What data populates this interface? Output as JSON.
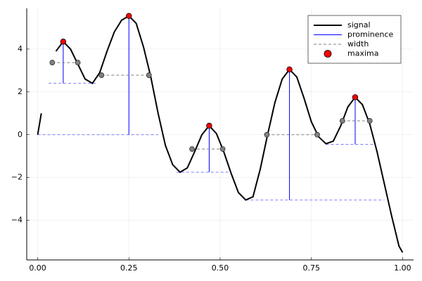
{
  "chart_data": {
    "type": "line",
    "xlim": [
      -0.03,
      1.03
    ],
    "ylim": [
      -5.85,
      5.9
    ],
    "xticks": [
      {
        "value": 0,
        "label": "0.00"
      },
      {
        "value": 0.25,
        "label": "0.25"
      },
      {
        "value": 0.5,
        "label": "0.50"
      },
      {
        "value": 0.75,
        "label": "0.75"
      },
      {
        "value": 1,
        "label": "1.00"
      }
    ],
    "yticks": [
      {
        "value": -4,
        "label": "−4"
      },
      {
        "value": -2,
        "label": "−2"
      },
      0,
      2,
      4
    ],
    "grid": true,
    "legend": "top-right",
    "series": [
      {
        "name": "signal",
        "color": "#000000",
        "mark": "line",
        "x": [
          0,
          0.01,
          0.03,
          0.05,
          0.07,
          0.09,
          0.11,
          0.13,
          0.15,
          0.17,
          0.19,
          0.21,
          0.23,
          0.25,
          0.27,
          0.29,
          0.31,
          0.33,
          0.35,
          0.37,
          0.39,
          0.41,
          0.43,
          0.45,
          0.47,
          0.49,
          0.51,
          0.53,
          0.55,
          0.57,
          0.59,
          0.61,
          0.63,
          0.65,
          0.67,
          0.69,
          0.71,
          0.73,
          0.75,
          0.77,
          0.79,
          0.81,
          0.83,
          0.85,
          0.87,
          0.89,
          0.91,
          0.93,
          0.95,
          0.97,
          0.99,
          1.0
        ],
        "values": [
          0,
          1.0,
          null,
          3.9,
          4.35,
          4.0,
          3.3,
          2.6,
          2.4,
          2.9,
          3.9,
          4.8,
          5.35,
          5.55,
          5.2,
          4.1,
          2.7,
          1.0,
          -0.5,
          -1.4,
          -1.75,
          -1.55,
          -0.8,
          0.0,
          0.42,
          0.05,
          -0.8,
          -1.8,
          -2.7,
          -3.05,
          -2.9,
          -1.6,
          0.0,
          1.5,
          2.6,
          3.05,
          2.7,
          1.7,
          0.6,
          -0.1,
          -0.42,
          -0.3,
          0.4,
          1.3,
          1.75,
          1.4,
          0.5,
          -0.8,
          -2.3,
          -3.8,
          -5.2,
          -5.5
        ]
      },
      {
        "name": "prominence",
        "color": "#0000ff",
        "mark": "vline",
        "x": [
          0.07,
          0.25,
          0.47,
          0.69,
          0.87
        ],
        "values": [
          4.35,
          5.55,
          0.42,
          3.05,
          1.75
        ],
        "bases": [
          2.4,
          0,
          -1.75,
          -3.05,
          -0.45
        ],
        "base_left": [
          0.03,
          0.0,
          0.38,
          0.57,
          0.79
        ],
        "base_right": [
          0.16,
          0.33,
          0.53,
          0.95,
          0.92
        ]
      },
      {
        "name": "width",
        "color": "#808080",
        "mark": "hline",
        "values": [
          3.37,
          2.78,
          -0.67,
          0.0,
          0.65
        ],
        "left": [
          0.04,
          0.175,
          0.423,
          0.628,
          0.835
        ],
        "right": [
          0.11,
          0.305,
          0.507,
          0.766,
          0.91
        ]
      },
      {
        "name": "maxima",
        "color": "#ff0000",
        "mark": "scatter",
        "x": [
          0.07,
          0.25,
          0.47,
          0.69,
          0.87
        ],
        "values": [
          4.35,
          5.55,
          0.42,
          3.05,
          1.75
        ]
      }
    ]
  }
}
